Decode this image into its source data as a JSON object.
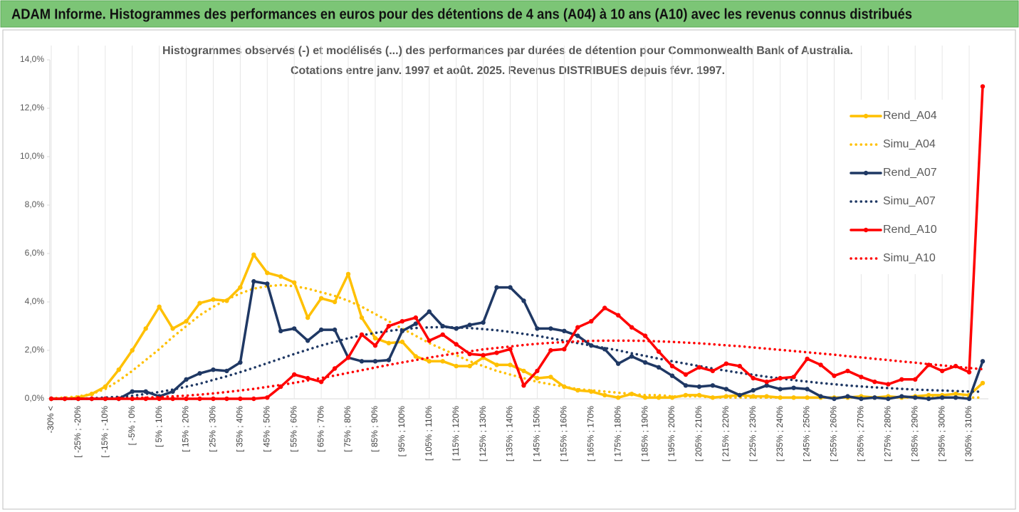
{
  "header": "ADAM Informe. Histogrammes des performances en euros pour des détentions de 4 ans (A04) à 10 ans (A10) avec les revenus connus distribués",
  "chart_data": {
    "type": "line",
    "title": "Histogrammes observés (-) et modélisés (...) des performances par durées de détention pour Commonwealth Bank of Australia.",
    "subtitle": "Cotations entre janv. 1997 et août. 2025. Revenus DISTRIBUES depuis févr. 1997.",
    "categories": [
      "-30% <",
      null,
      "[ -25% ; -20%",
      null,
      "[ -15% ; -10%",
      null,
      "[ -5% ; 0%",
      null,
      "[ 5% ; 10%",
      null,
      "[ 15% ; 20%",
      null,
      "[ 25% ; 30%",
      null,
      "[ 35% ; 40%",
      null,
      "[ 45% ; 50%",
      null,
      "[ 55% ; 60%",
      null,
      "[ 65% ; 70%",
      null,
      "[ 75% ; 80%",
      null,
      "[ 85% ; 90%",
      null,
      "[ 95% ; 100%",
      null,
      "[ 105% ; 110%",
      null,
      "[ 115% ; 120%",
      null,
      "[ 125% ; 130%",
      null,
      "[ 135% ; 140%",
      null,
      "[ 145% ; 150%",
      null,
      "[ 155% ; 160%",
      null,
      "[ 165% ; 170%",
      null,
      "[ 175% ; 180%",
      null,
      "[ 185% ; 190%",
      null,
      "[ 195% ; 200%",
      null,
      "[ 205% ; 210%",
      null,
      "[ 215% ; 220%",
      null,
      "[ 225% ; 230%",
      null,
      "[ 235% ; 240%",
      null,
      "[ 245% ; 250%",
      null,
      "[ 255% ; 260%",
      null,
      "[ 265% ; 270%",
      null,
      "[ 275% ; 280%",
      null,
      "[ 285% ; 290%",
      null,
      "[ 295% ; 300%",
      null,
      "[ 305% ; 310%",
      null
    ],
    "series": [
      {
        "name": "Rend_A04",
        "color": "#ffc000",
        "dash": "solid",
        "markers": true,
        "values": [
          0,
          0,
          0.05,
          0.2,
          0.5,
          1.2,
          2.0,
          2.9,
          3.8,
          2.9,
          3.2,
          3.95,
          4.1,
          4.05,
          4.6,
          5.95,
          5.2,
          5.05,
          4.8,
          3.35,
          4.15,
          4.0,
          5.15,
          3.35,
          2.5,
          2.3,
          2.35,
          1.75,
          1.55,
          1.55,
          1.35,
          1.35,
          1.7,
          1.4,
          1.4,
          1.15,
          0.85,
          0.9,
          0.5,
          0.35,
          0.3,
          0.15,
          0.05,
          0.2,
          0.05,
          0.05,
          0.05,
          0.15,
          0.15,
          0.05,
          0.1,
          0.15,
          0.1,
          0.1,
          0.05,
          0.05,
          0.05,
          0.05,
          0.05,
          0.05,
          0.1,
          0.05,
          0.1,
          0.05,
          0.1,
          0.15,
          0.15,
          0.2,
          0.15,
          0.65
        ]
      },
      {
        "name": "Simu_A04",
        "color": "#ffc000",
        "dash": "dotted",
        "markers": false,
        "values": [
          0.02,
          0.05,
          0.1,
          0.2,
          0.4,
          0.75,
          1.15,
          1.6,
          2.05,
          2.55,
          3.0,
          3.45,
          3.8,
          4.1,
          4.35,
          4.55,
          4.65,
          4.7,
          4.65,
          4.55,
          4.4,
          4.25,
          4.05,
          3.8,
          3.5,
          3.2,
          2.9,
          2.6,
          2.3,
          2.05,
          1.8,
          1.55,
          1.35,
          1.15,
          1.0,
          0.85,
          0.7,
          0.6,
          0.5,
          0.4,
          0.35,
          0.3,
          0.25,
          0.2,
          0.15,
          0.15,
          0.1,
          0.1,
          0.1,
          0.05,
          0.05,
          0.05,
          0.05,
          0.05,
          0.05,
          0.05,
          0.05,
          0.05,
          0.05,
          0.05,
          0.05,
          0.05,
          0.05,
          0.05,
          0.05,
          0.05,
          0.05,
          0.05,
          0.05,
          0.05
        ]
      },
      {
        "name": "Rend_A07",
        "color": "#1f3864",
        "dash": "solid",
        "markers": true,
        "values": [
          0,
          0,
          0,
          0,
          0,
          0,
          0.3,
          0.3,
          0.1,
          0.3,
          0.8,
          1.05,
          1.2,
          1.15,
          1.5,
          4.85,
          4.75,
          2.8,
          2.9,
          2.4,
          2.85,
          2.85,
          1.7,
          1.55,
          1.55,
          1.6,
          2.8,
          3.1,
          3.6,
          3.0,
          2.9,
          3.05,
          3.15,
          4.6,
          4.6,
          4.05,
          2.9,
          2.9,
          2.8,
          2.6,
          2.2,
          2.05,
          1.45,
          1.75,
          1.5,
          1.3,
          0.95,
          0.55,
          0.5,
          0.55,
          0.4,
          0.15,
          0.35,
          0.55,
          0.4,
          0.45,
          0.4,
          0.1,
          0,
          0.1,
          0,
          0.05,
          0,
          0.1,
          0.05,
          0,
          0.05,
          0.05,
          0,
          1.55
        ]
      },
      {
        "name": "Simu_A07",
        "color": "#1f3864",
        "dash": "dotted",
        "markers": false,
        "values": [
          0,
          0,
          0,
          0.02,
          0.05,
          0.08,
          0.12,
          0.2,
          0.28,
          0.38,
          0.5,
          0.62,
          0.78,
          0.93,
          1.1,
          1.28,
          1.47,
          1.66,
          1.85,
          2.03,
          2.2,
          2.35,
          2.5,
          2.62,
          2.72,
          2.8,
          2.87,
          2.92,
          2.95,
          2.96,
          2.95,
          2.92,
          2.88,
          2.83,
          2.76,
          2.68,
          2.6,
          2.5,
          2.4,
          2.3,
          2.2,
          2.1,
          2.0,
          1.88,
          1.77,
          1.66,
          1.55,
          1.45,
          1.35,
          1.25,
          1.16,
          1.07,
          0.99,
          0.91,
          0.84,
          0.77,
          0.71,
          0.65,
          0.6,
          0.55,
          0.51,
          0.47,
          0.44,
          0.41,
          0.38,
          0.36,
          0.34,
          0.32,
          0.3,
          0.29
        ]
      },
      {
        "name": "Rend_A10",
        "color": "#ff0000",
        "dash": "solid",
        "markers": true,
        "values": [
          0,
          0,
          0,
          0,
          0,
          0,
          0,
          0,
          0,
          0,
          0,
          0,
          0,
          0,
          0,
          0,
          0.05,
          0.5,
          1.0,
          0.85,
          0.7,
          1.25,
          1.7,
          2.65,
          2.2,
          3.0,
          3.2,
          3.35,
          2.4,
          2.65,
          2.25,
          1.85,
          1.8,
          1.9,
          2.05,
          0.55,
          1.15,
          2.0,
          2.05,
          2.95,
          3.2,
          3.75,
          3.45,
          2.95,
          2.6,
          1.95,
          1.35,
          1.0,
          1.3,
          1.15,
          1.45,
          1.35,
          0.85,
          0.7,
          0.85,
          0.9,
          1.65,
          1.4,
          0.95,
          1.15,
          0.9,
          0.7,
          0.6,
          0.8,
          0.8,
          1.4,
          1.15,
          1.35,
          1.1,
          12.9
        ]
      },
      {
        "name": "Simu_A10",
        "color": "#ff0000",
        "dash": "dotted",
        "markers": false,
        "values": [
          0,
          0,
          0,
          0,
          0.01,
          0.02,
          0.03,
          0.05,
          0.07,
          0.1,
          0.13,
          0.17,
          0.22,
          0.28,
          0.34,
          0.41,
          0.49,
          0.57,
          0.66,
          0.76,
          0.86,
          0.96,
          1.07,
          1.18,
          1.29,
          1.4,
          1.5,
          1.6,
          1.7,
          1.79,
          1.88,
          1.96,
          2.04,
          2.1,
          2.16,
          2.22,
          2.27,
          2.31,
          2.34,
          2.37,
          2.39,
          2.4,
          2.4,
          2.4,
          2.39,
          2.37,
          2.35,
          2.32,
          2.29,
          2.25,
          2.21,
          2.17,
          2.12,
          2.07,
          2.02,
          1.97,
          1.92,
          1.87,
          1.82,
          1.76,
          1.71,
          1.65,
          1.6,
          1.54,
          1.49,
          1.43,
          1.38,
          1.32,
          1.27,
          1.22
        ]
      }
    ],
    "ylim": [
      0,
      14
    ],
    "yticks": [
      {
        "value": 0,
        "label": "0,0%"
      },
      {
        "value": 2,
        "label": "2,0%"
      },
      {
        "value": 4,
        "label": "4,0%"
      },
      {
        "value": 6,
        "label": "6,0%"
      },
      {
        "value": 8,
        "label": "8,0%"
      },
      {
        "value": 10,
        "label": "10,0%"
      },
      {
        "value": 12,
        "label": "12,0%"
      },
      {
        "value": 14,
        "label": "14,0%"
      }
    ],
    "grid": "x",
    "legend": "right"
  }
}
